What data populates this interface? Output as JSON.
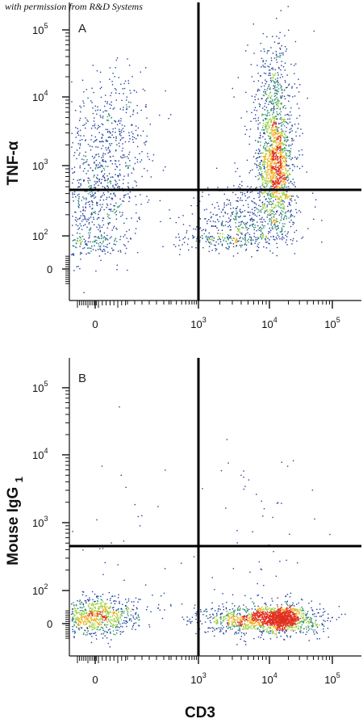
{
  "credit": "with permission from R&D Systems",
  "colors": {
    "sparse": "#1f3f9a",
    "low": "#2f8f6f",
    "mid": "#9ccf3a",
    "high": "#f0b020",
    "peak": "#e03020"
  },
  "chart_data": [
    {
      "type": "scatter",
      "panel_label": "A",
      "xlabel": "",
      "ylabel": "TNF-α",
      "x_ticks": [
        {
          "base": "0",
          "exp": ""
        },
        {
          "base": "10",
          "exp": "3"
        },
        {
          "base": "10",
          "exp": "4"
        },
        {
          "base": "10",
          "exp": "5"
        }
      ],
      "y_ticks": [
        {
          "base": "0",
          "exp": ""
        },
        {
          "base": "10",
          "exp": "2"
        },
        {
          "base": "10",
          "exp": "3"
        },
        {
          "base": "10",
          "exp": "4"
        },
        {
          "base": "10",
          "exp": "5"
        }
      ],
      "x_scale": "biexponential",
      "y_scale": "biexponential",
      "xlim": [
        -0.5,
        5.3
      ],
      "ylim": [
        -0.4,
        5.4
      ],
      "quadrant_gate": {
        "x": 3.0,
        "y": 2.65
      },
      "populations": [
        {
          "cx": 0.55,
          "cy": 2.6,
          "sx": 0.55,
          "sy": 0.75,
          "n": 900,
          "tilt": 0.3
        },
        {
          "cx": 0.95,
          "cy": 3.3,
          "sx": 0.6,
          "sy": 0.6,
          "n": 200,
          "tilt": 0.4
        },
        {
          "cx": 4.1,
          "cy": 3.0,
          "sx": 0.13,
          "sy": 0.38,
          "n": 1100,
          "tilt": 0.0
        },
        {
          "cx": 4.05,
          "cy": 3.9,
          "sx": 0.18,
          "sy": 0.5,
          "n": 500,
          "tilt": 0.0
        },
        {
          "cx": 3.65,
          "cy": 2.15,
          "sx": 0.45,
          "sy": 0.3,
          "n": 700,
          "tilt": 0.2
        }
      ]
    },
    {
      "type": "scatter",
      "panel_label": "B",
      "xlabel": "CD3",
      "ylabel": "Mouse IgG",
      "ylabel_subscript": "1",
      "x_ticks": [
        {
          "base": "0",
          "exp": ""
        },
        {
          "base": "10",
          "exp": "3"
        },
        {
          "base": "10",
          "exp": "4"
        },
        {
          "base": "10",
          "exp": "5"
        }
      ],
      "y_ticks": [
        {
          "base": "0",
          "exp": ""
        },
        {
          "base": "10",
          "exp": "2"
        },
        {
          "base": "10",
          "exp": "3"
        },
        {
          "base": "10",
          "exp": "4"
        },
        {
          "base": "10",
          "exp": "5"
        }
      ],
      "x_scale": "biexponential",
      "y_scale": "biexponential",
      "xlim": [
        -0.5,
        5.3
      ],
      "ylim": [
        -0.4,
        5.4
      ],
      "quadrant_gate": {
        "x": 3.0,
        "y": 2.65
      },
      "populations": [
        {
          "cx": 0.55,
          "cy": 0.9,
          "sx": 0.5,
          "sy": 0.4,
          "n": 800,
          "tilt": 0.1
        },
        {
          "cx": 3.95,
          "cy": 0.8,
          "sx": 0.42,
          "sy": 0.3,
          "n": 1300,
          "tilt": 0.0
        },
        {
          "cx": 4.2,
          "cy": 0.85,
          "sx": 0.13,
          "sy": 0.22,
          "n": 500,
          "tilt": 0.0
        },
        {
          "cx": 3.9,
          "cy": 2.5,
          "sx": 0.5,
          "sy": 1.0,
          "n": 70,
          "tilt": 0.0
        },
        {
          "cx": 1.1,
          "cy": 2.2,
          "sx": 0.8,
          "sy": 0.9,
          "n": 50,
          "tilt": 0.0
        }
      ]
    }
  ]
}
